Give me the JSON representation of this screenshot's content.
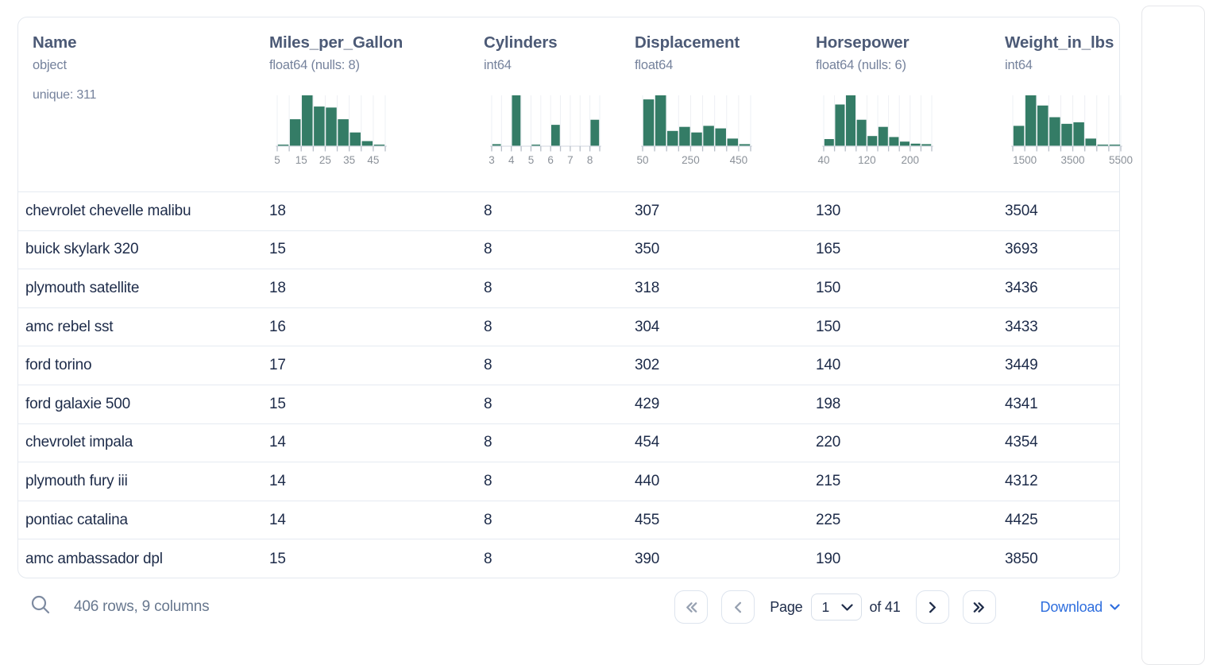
{
  "theme": {
    "accent_green": "#347c66",
    "link_blue": "#2e6ede",
    "header_text": "#4c5a76",
    "meta_text": "#75829c",
    "cell_text": "#1d2b49",
    "muted_icon": "#97a1b1",
    "dark_icon": "#1f2c49"
  },
  "table": {
    "columns": [
      {
        "key": "name",
        "title": "Name",
        "type": "object",
        "detail": "unique: 311"
      },
      {
        "key": "miles_per_gallon",
        "title": "Miles_per_Gallon",
        "type": "float64 (nulls: 8)",
        "histogram": {
          "kind": "bar",
          "bin_heights": [
            0.03,
            0.53,
            1.0,
            0.78,
            0.76,
            0.53,
            0.27,
            0.1,
            0.03
          ],
          "tick_labels": [
            "5",
            "",
            "15",
            "",
            "25",
            "",
            "35",
            "",
            "45",
            ""
          ]
        }
      },
      {
        "key": "cylinders",
        "title": "Cylinders",
        "type": "int64",
        "histogram": {
          "kind": "bar",
          "bin_heights": [
            0.04,
            0,
            1.0,
            0,
            0.03,
            0,
            0.42,
            0,
            0,
            0,
            0.52
          ],
          "tick_labels": [
            "3",
            "",
            "4",
            "",
            "5",
            "",
            "6",
            "",
            "7",
            "",
            "8",
            ""
          ]
        }
      },
      {
        "key": "displacement",
        "title": "Displacement",
        "type": "float64",
        "histogram": {
          "kind": "bar",
          "bin_heights": [
            0.92,
            1.0,
            0.3,
            0.38,
            0.27,
            0.4,
            0.35,
            0.15,
            0.04
          ],
          "tick_labels": [
            "50",
            "",
            "",
            "",
            "250",
            "",
            "",
            "",
            "450",
            ""
          ]
        }
      },
      {
        "key": "horsepower",
        "title": "Horsepower",
        "type": "float64 (nulls: 6)",
        "histogram": {
          "kind": "bar",
          "bin_heights": [
            0.14,
            0.82,
            1.0,
            0.52,
            0.2,
            0.38,
            0.18,
            0.09,
            0.05,
            0.04
          ],
          "tick_labels": [
            "40",
            "",
            "",
            "",
            "120",
            "",
            "",
            "",
            "200",
            "",
            ""
          ]
        }
      },
      {
        "key": "weight_in_lbs",
        "title": "Weight_in_lbs",
        "type": "int64",
        "histogram": {
          "kind": "bar",
          "bin_heights": [
            0.4,
            1.0,
            0.8,
            0.57,
            0.44,
            0.47,
            0.15,
            0.03,
            0.02
          ],
          "tick_labels": [
            "",
            "1500",
            "",
            "",
            "",
            "3500",
            "",
            "",
            "",
            "5500"
          ]
        }
      }
    ],
    "rows": [
      [
        "chevrolet chevelle malibu",
        "18",
        "8",
        "307",
        "130",
        "3504"
      ],
      [
        "buick skylark 320",
        "15",
        "8",
        "350",
        "165",
        "3693"
      ],
      [
        "plymouth satellite",
        "18",
        "8",
        "318",
        "150",
        "3436"
      ],
      [
        "amc rebel sst",
        "16",
        "8",
        "304",
        "150",
        "3433"
      ],
      [
        "ford torino",
        "17",
        "8",
        "302",
        "140",
        "3449"
      ],
      [
        "ford galaxie 500",
        "15",
        "8",
        "429",
        "198",
        "4341"
      ],
      [
        "chevrolet impala",
        "14",
        "8",
        "454",
        "220",
        "4354"
      ],
      [
        "plymouth fury iii",
        "14",
        "8",
        "440",
        "215",
        "4312"
      ],
      [
        "pontiac catalina",
        "14",
        "8",
        "455",
        "225",
        "4425"
      ],
      [
        "amc ambassador dpl",
        "15",
        "8",
        "390",
        "190",
        "3850"
      ]
    ]
  },
  "status_bar": {
    "search_icon": "search-icon",
    "summary": "406 rows, 9 columns",
    "pager": {
      "page_label": "Page",
      "page_value": "1",
      "of_label": "of 41",
      "buttons_left": [
        {
          "name": "first-page-button",
          "icon": "chevrons-left",
          "disabled": true
        },
        {
          "name": "prev-page-button",
          "icon": "chevron-left",
          "disabled": true
        }
      ],
      "buttons_right": [
        {
          "name": "next-page-button",
          "icon": "chevron-right",
          "disabled": false
        },
        {
          "name": "last-page-button",
          "icon": "chevrons-right",
          "disabled": false
        }
      ]
    },
    "download_label": "Download"
  }
}
